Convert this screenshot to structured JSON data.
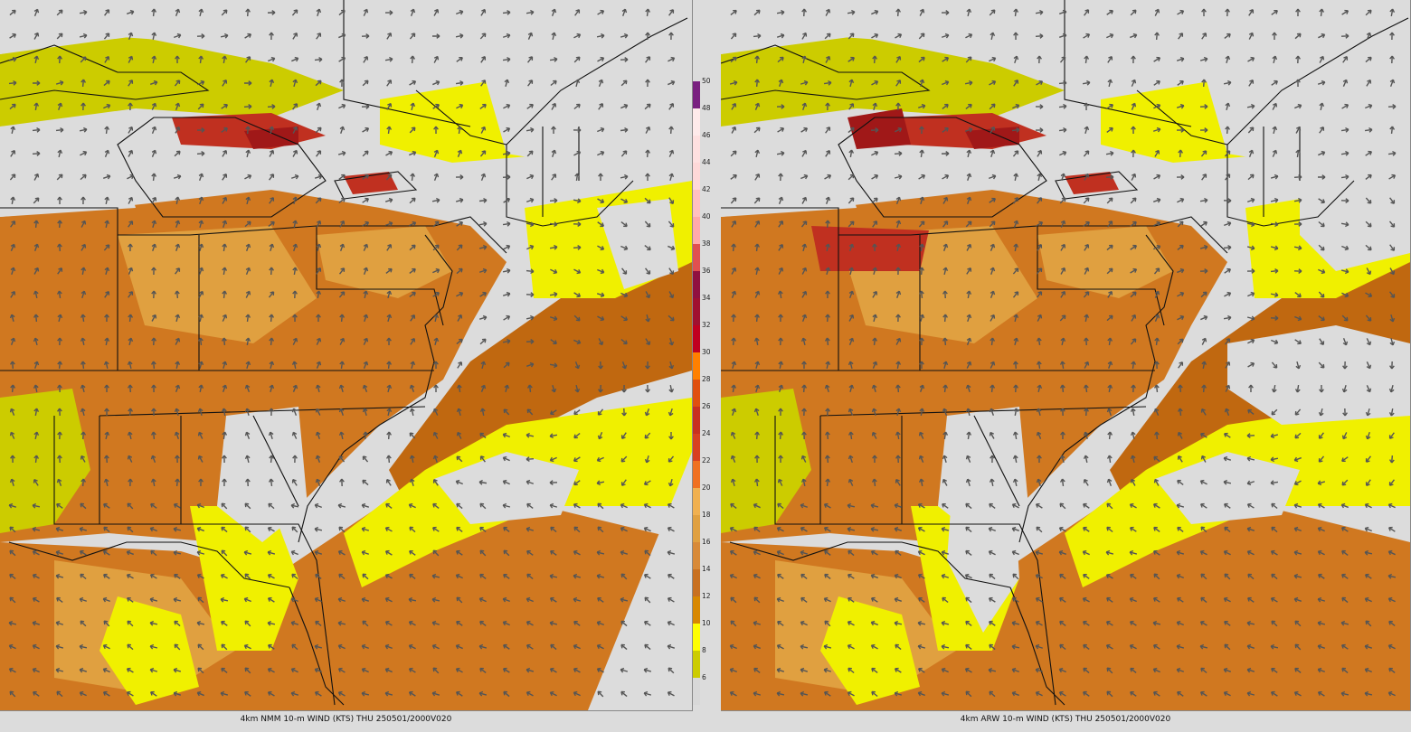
{
  "panels": [
    {
      "id": "left",
      "caption": "4km NMM 10-m WIND (KTS) THU 250501/2000V020"
    },
    {
      "id": "right",
      "caption": "4km ARW 10-m WIND (KTS) THU 250501/2000V020"
    }
  ],
  "colorbar": {
    "labels": [
      "6",
      "8",
      "10",
      "12",
      "14",
      "16",
      "18",
      "20",
      "22",
      "24",
      "26",
      "28",
      "30",
      "32",
      "34",
      "36",
      "38",
      "40",
      "42",
      "44",
      "46",
      "48",
      "50"
    ],
    "colors": [
      "#d8d8d8",
      "#cccc00",
      "#ffff00",
      "#d88800",
      "#c87020",
      "#d88a38",
      "#e0a040",
      "#f0b050",
      "#f07020",
      "#d84020",
      "#c83020",
      "#e05010",
      "#ff8000",
      "#c00020",
      "#a01030",
      "#901040",
      "#e05050",
      "#ffaaaa",
      "#ffc0c0",
      "#ffd8d8",
      "#ffe0e0",
      "#ffeaea",
      "#7a2080"
    ],
    "top_color": "#7a2080"
  },
  "map_colors": {
    "calm": "#dcdcdc",
    "light_yellow": "#cccc00",
    "yellow": "#f0f000",
    "tan": "#e0a040",
    "orange": "#d07820",
    "dark_orange": "#c06810",
    "red": "#c03020",
    "dark_red": "#a01818",
    "arrow": "#555555",
    "border": "#111111"
  }
}
